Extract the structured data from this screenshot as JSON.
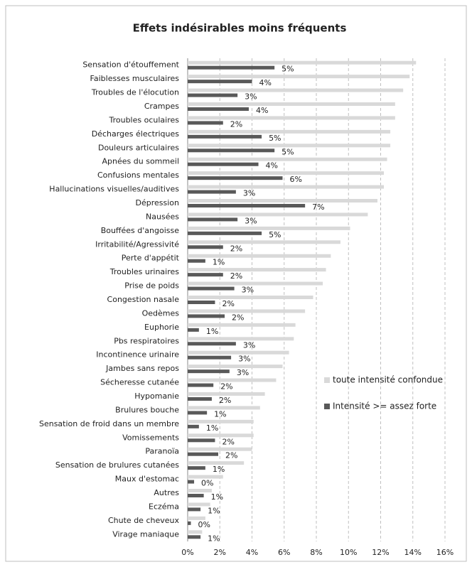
{
  "chart_data": {
    "type": "bar",
    "orientation": "horizontal",
    "title": "Effets indésirables moins fréquents",
    "categories": [
      "Sensation d'étouffement",
      "Faiblesses musculaires",
      "Troubles de l'élocution",
      "Crampes",
      "Troubles oculaires",
      "Décharges électriques",
      "Douleurs articulaires",
      "Apnées du sommeil",
      "Confusions mentales",
      "Hallucinations visuelles/auditives",
      "Dépression",
      "Nausées",
      "Bouffées d'angoisse",
      "Irritabilité/Agressivité",
      "Perte d'appétit",
      "Troubles urinaires",
      "Prise de poids",
      "Congestion nasale",
      "Oedèmes",
      "Euphorie",
      "Pbs respiratoires",
      "Incontinence urinaire",
      "Jambes sans repos",
      "Sécheresse cutanée",
      "Hypomanie",
      "Brulures bouche",
      "Sensation de froid dans un membre",
      "Vomissements",
      "Paranoïa",
      "Sensation de brulures cutanées",
      "Maux d'estomac",
      "Autres",
      "Eczéma",
      "Chute de cheveux",
      "Virage maniaque"
    ],
    "series": [
      {
        "name": "toute intensité confondue",
        "color": "#d9d9d9",
        "values": [
          14.2,
          13.8,
          13.4,
          12.9,
          12.9,
          12.6,
          12.6,
          12.4,
          12.2,
          12.2,
          11.8,
          11.2,
          10.1,
          9.5,
          8.9,
          8.6,
          8.4,
          7.8,
          7.3,
          6.7,
          6.6,
          6.3,
          5.9,
          5.5,
          4.8,
          4.5,
          4.1,
          4.1,
          4.0,
          3.5,
          2.2,
          1.5,
          1.4,
          1.1,
          0.9
        ]
      },
      {
        "name": "Intensité >= assez forte",
        "color": "#595959",
        "values": [
          5.4,
          4.0,
          3.1,
          3.8,
          2.2,
          4.6,
          5.4,
          4.4,
          5.9,
          3.0,
          7.3,
          3.1,
          4.6,
          2.2,
          1.1,
          2.2,
          2.9,
          1.7,
          2.3,
          0.7,
          3.0,
          2.7,
          2.6,
          1.6,
          1.5,
          1.2,
          0.7,
          1.7,
          1.9,
          1.1,
          0.4,
          1.0,
          0.8,
          0.2,
          0.8
        ],
        "value_labels": [
          "5%",
          "4%",
          "3%",
          "4%",
          "2%",
          "5%",
          "5%",
          "4%",
          "6%",
          "3%",
          "7%",
          "3%",
          "5%",
          "2%",
          "1%",
          "2%",
          "3%",
          "2%",
          "2%",
          "1%",
          "3%",
          "3%",
          "3%",
          "2%",
          "2%",
          "1%",
          "1%",
          "2%",
          "2%",
          "1%",
          "0%",
          "1%",
          "1%",
          "0%",
          "1%"
        ]
      }
    ],
    "xlim": [
      0,
      16
    ],
    "xticks": [
      {
        "value": 0,
        "label": "0%"
      },
      {
        "value": 2,
        "label": "2%"
      },
      {
        "value": 4,
        "label": "4%"
      },
      {
        "value": 6,
        "label": "6%"
      },
      {
        "value": 8,
        "label": "8%"
      },
      {
        "value": 10,
        "label": "10%"
      },
      {
        "value": 12,
        "label": "12%"
      },
      {
        "value": 14,
        "label": "14%"
      },
      {
        "value": 16,
        "label": "16%"
      }
    ],
    "grid": true,
    "legend": "right"
  }
}
